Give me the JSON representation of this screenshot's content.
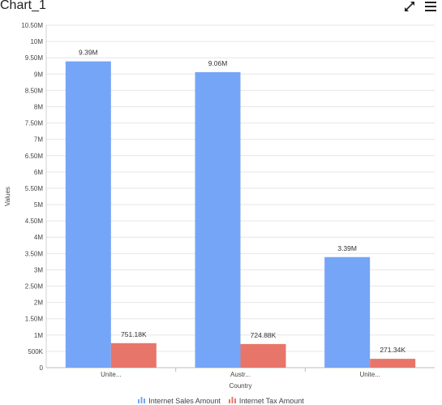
{
  "window": {
    "title": "Chart_1"
  },
  "toolbar": {
    "expand_icon": "expand-icon",
    "menu_icon": "hamburger-menu-icon"
  },
  "colors": {
    "sales": "#75a5f7",
    "tax": "#e8756a",
    "grid": "#e6e6e6"
  },
  "chart_data": {
    "type": "bar",
    "categories": [
      "Unite...",
      "Austr...",
      "Unite..."
    ],
    "series": [
      {
        "name": "Internet Sales Amount",
        "values": [
          9390000,
          9060000,
          3390000
        ],
        "labels": [
          "9.39M",
          "9.06M",
          "3.39M"
        ]
      },
      {
        "name": "Internet Tax Amount",
        "values": [
          751180,
          724880,
          271340
        ],
        "labels": [
          "751.18K",
          "724.88K",
          "271.34K"
        ]
      }
    ],
    "xlabel": "Country",
    "ylabel": "Values",
    "ylim": [
      0,
      10500000
    ],
    "yticks": [
      0,
      500000,
      1000000,
      1500000,
      2000000,
      2500000,
      3000000,
      3500000,
      4000000,
      4500000,
      5000000,
      5500000,
      6000000,
      6500000,
      7000000,
      7500000,
      8000000,
      8500000,
      9000000,
      9500000,
      10000000,
      10500000
    ],
    "yticklabels": [
      "0",
      "500K",
      "1M",
      "1.50M",
      "2M",
      "2.50M",
      "3M",
      "3.50M",
      "4M",
      "4.50M",
      "5M",
      "5.50M",
      "6M",
      "6.50M",
      "7M",
      "7.50M",
      "8M",
      "8.50M",
      "9M",
      "9.50M",
      "10M",
      "10.50M"
    ],
    "grid": true,
    "legend": "bottom-center"
  }
}
